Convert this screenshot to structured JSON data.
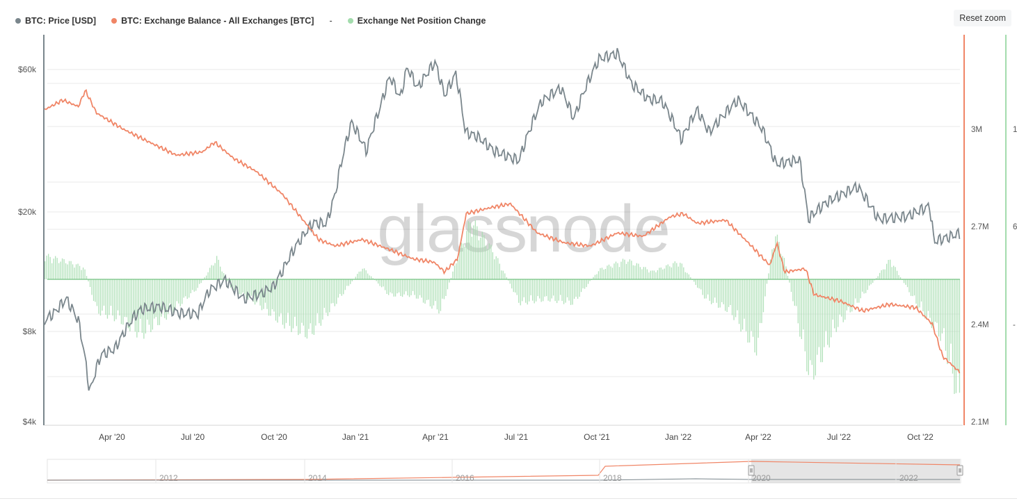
{
  "legend": {
    "price_label": "BTC: Price [USD]",
    "balance_label": "BTC: Exchange Balance - All Exchanges [BTC]",
    "separator": "-",
    "netpos_label": "Exchange Net Position Change"
  },
  "reset_zoom_label": "Reset zoom",
  "watermark": "glassnode",
  "colors": {
    "price": "#7a868c",
    "balance": "#f08566",
    "netpos": "#a3dcad",
    "netpos_line": "#74c282",
    "grid": "#e9e9e9"
  },
  "chart_data": {
    "type": "line",
    "x_ticks": [
      "Apr '20",
      "Jul '20",
      "Oct '20",
      "Jan '21",
      "Apr '21",
      "Jul '21",
      "Oct '21",
      "Jan '22",
      "Apr '22",
      "Jul '22",
      "Oct '22"
    ],
    "y_left_ticks": [
      "$60k",
      "$20k",
      "$8k",
      "$4k"
    ],
    "y_right_ticks": [
      "3M",
      "2.7M",
      "2.4M",
      "2.1M"
    ],
    "y_right2_ticks": [
      "1",
      "6",
      "-"
    ],
    "y_left_scale": "log",
    "xlim": [
      "2020-01-20",
      "2022-12-10"
    ],
    "series": [
      {
        "name": "BTC: Price [USD]",
        "axis": "left",
        "points": [
          [
            "2020-01-20",
            8700
          ],
          [
            "2020-02-01",
            9300
          ],
          [
            "2020-02-14",
            10300
          ],
          [
            "2020-02-28",
            8700
          ],
          [
            "2020-03-12",
            5000
          ],
          [
            "2020-03-25",
            6700
          ],
          [
            "2020-04-10",
            7000
          ],
          [
            "2020-04-30",
            8800
          ],
          [
            "2020-05-10",
            9500
          ],
          [
            "2020-06-01",
            9700
          ],
          [
            "2020-06-25",
            9200
          ],
          [
            "2020-07-15",
            9200
          ],
          [
            "2020-07-28",
            11000
          ],
          [
            "2020-08-15",
            11900
          ],
          [
            "2020-09-05",
            10300
          ],
          [
            "2020-09-25",
            10700
          ],
          [
            "2020-10-10",
            11300
          ],
          [
            "2020-10-21",
            12900
          ],
          [
            "2020-11-05",
            15500
          ],
          [
            "2020-11-25",
            18500
          ],
          [
            "2020-12-10",
            18300
          ],
          [
            "2020-12-20",
            23000
          ],
          [
            "2021-01-08",
            40000
          ],
          [
            "2021-01-25",
            32000
          ],
          [
            "2021-02-10",
            45000
          ],
          [
            "2021-02-21",
            57000
          ],
          [
            "2021-03-05",
            48000
          ],
          [
            "2021-03-13",
            61000
          ],
          [
            "2021-03-25",
            52000
          ],
          [
            "2021-04-14",
            63500
          ],
          [
            "2021-04-25",
            49000
          ],
          [
            "2021-05-08",
            58000
          ],
          [
            "2021-05-19",
            37000
          ],
          [
            "2021-06-01",
            36000
          ],
          [
            "2021-06-22",
            32000
          ],
          [
            "2021-07-20",
            29800
          ],
          [
            "2021-08-15",
            47000
          ],
          [
            "2021-09-06",
            52000
          ],
          [
            "2021-09-21",
            41000
          ],
          [
            "2021-10-20",
            65000
          ],
          [
            "2021-11-10",
            68000
          ],
          [
            "2021-11-26",
            54000
          ],
          [
            "2021-12-15",
            48000
          ],
          [
            "2022-01-01",
            47000
          ],
          [
            "2022-01-23",
            35000
          ],
          [
            "2022-02-10",
            44000
          ],
          [
            "2022-02-24",
            37000
          ],
          [
            "2022-03-29",
            47500
          ],
          [
            "2022-04-26",
            38000
          ],
          [
            "2022-05-12",
            29000
          ],
          [
            "2022-06-08",
            30000
          ],
          [
            "2022-06-18",
            19000
          ],
          [
            "2022-07-08",
            21500
          ],
          [
            "2022-08-14",
            24400
          ],
          [
            "2022-09-07",
            19000
          ],
          [
            "2022-10-10",
            19400
          ],
          [
            "2022-11-05",
            21000
          ],
          [
            "2022-11-10",
            16000
          ],
          [
            "2022-12-10",
            17000
          ]
        ]
      },
      {
        "name": "BTC: Exchange Balance - All Exchanges [BTC]",
        "axis": "right",
        "points": [
          [
            "2020-01-20",
            3060000
          ],
          [
            "2020-02-10",
            3090000
          ],
          [
            "2020-02-28",
            3070000
          ],
          [
            "2020-03-07",
            3120000
          ],
          [
            "2020-03-20",
            3050000
          ],
          [
            "2020-04-20",
            3000000
          ],
          [
            "2020-05-20",
            2960000
          ],
          [
            "2020-06-20",
            2920000
          ],
          [
            "2020-07-20",
            2930000
          ],
          [
            "2020-08-03",
            2960000
          ],
          [
            "2020-08-25",
            2910000
          ],
          [
            "2020-09-20",
            2870000
          ],
          [
            "2020-10-20",
            2800000
          ],
          [
            "2020-11-10",
            2730000
          ],
          [
            "2020-12-01",
            2660000
          ],
          [
            "2020-12-20",
            2640000
          ],
          [
            "2021-01-20",
            2660000
          ],
          [
            "2021-02-20",
            2630000
          ],
          [
            "2021-03-20",
            2600000
          ],
          [
            "2021-04-13",
            2590000
          ],
          [
            "2021-04-25",
            2560000
          ],
          [
            "2021-05-10",
            2600000
          ],
          [
            "2021-05-20",
            2740000
          ],
          [
            "2021-06-20",
            2760000
          ],
          [
            "2021-07-10",
            2770000
          ],
          [
            "2021-08-10",
            2680000
          ],
          [
            "2021-09-10",
            2650000
          ],
          [
            "2021-10-10",
            2640000
          ],
          [
            "2021-11-10",
            2680000
          ],
          [
            "2021-12-10",
            2670000
          ],
          [
            "2022-01-10",
            2730000
          ],
          [
            "2022-01-25",
            2740000
          ],
          [
            "2022-02-10",
            2710000
          ],
          [
            "2022-03-15",
            2720000
          ],
          [
            "2022-04-10",
            2650000
          ],
          [
            "2022-05-05",
            2580000
          ],
          [
            "2022-05-13",
            2650000
          ],
          [
            "2022-05-22",
            2560000
          ],
          [
            "2022-06-15",
            2570000
          ],
          [
            "2022-06-25",
            2490000
          ],
          [
            "2022-07-25",
            2470000
          ],
          [
            "2022-08-20",
            2440000
          ],
          [
            "2022-09-20",
            2460000
          ],
          [
            "2022-10-20",
            2450000
          ],
          [
            "2022-11-08",
            2400000
          ],
          [
            "2022-11-20",
            2300000
          ],
          [
            "2022-12-10",
            2250000
          ]
        ]
      },
      {
        "name": "Exchange Net Position Change",
        "axis": "right2",
        "type": "bar",
        "points": [
          [
            "2020-01-20",
            60000
          ],
          [
            "2020-02-15",
            45000
          ],
          [
            "2020-03-05",
            30000
          ],
          [
            "2020-03-20",
            -80000
          ],
          [
            "2020-04-15",
            -100000
          ],
          [
            "2020-05-10",
            -140000
          ],
          [
            "2020-06-15",
            -80000
          ],
          [
            "2020-07-15",
            -20000
          ],
          [
            "2020-08-05",
            55000
          ],
          [
            "2020-08-20",
            -20000
          ],
          [
            "2020-09-20",
            -60000
          ],
          [
            "2020-10-20",
            -110000
          ],
          [
            "2020-11-20",
            -140000
          ],
          [
            "2020-12-20",
            -60000
          ],
          [
            "2021-01-20",
            30000
          ],
          [
            "2021-02-20",
            -40000
          ],
          [
            "2021-03-20",
            -40000
          ],
          [
            "2021-04-20",
            -80000
          ],
          [
            "2021-05-10",
            60000
          ],
          [
            "2021-05-25",
            150000
          ],
          [
            "2021-06-20",
            70000
          ],
          [
            "2021-07-20",
            -60000
          ],
          [
            "2021-08-20",
            -50000
          ],
          [
            "2021-09-20",
            -60000
          ],
          [
            "2021-10-20",
            25000
          ],
          [
            "2021-11-20",
            50000
          ],
          [
            "2021-12-20",
            20000
          ],
          [
            "2022-01-20",
            45000
          ],
          [
            "2022-02-20",
            -50000
          ],
          [
            "2022-03-20",
            -80000
          ],
          [
            "2022-04-20",
            -180000
          ],
          [
            "2022-05-10",
            120000
          ],
          [
            "2022-05-20",
            60000
          ],
          [
            "2022-06-20",
            -250000
          ],
          [
            "2022-07-20",
            -120000
          ],
          [
            "2022-08-20",
            -40000
          ],
          [
            "2022-09-20",
            50000
          ],
          [
            "2022-10-20",
            -60000
          ],
          [
            "2022-11-20",
            -150000
          ],
          [
            "2022-12-10",
            -320000
          ]
        ]
      }
    ],
    "navigator_ticks": [
      "2012",
      "2014",
      "2016",
      "2018",
      "2020",
      "2022"
    ],
    "grid": true,
    "legend_position": "top-left"
  }
}
